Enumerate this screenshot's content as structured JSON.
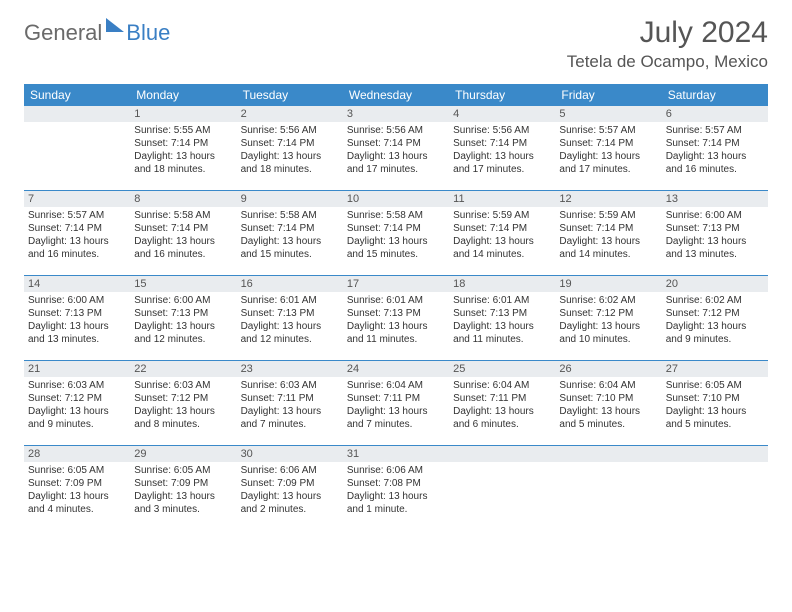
{
  "logo": {
    "general": "General",
    "blue": "Blue"
  },
  "title": {
    "month": "July 2024",
    "location": "Tetela de Ocampo, Mexico"
  },
  "style": {
    "header_bg": "#3a89c9",
    "header_text": "#ffffff",
    "daybar_bg": "#e9ecef",
    "rule_color": "#3a89c9",
    "body_text": "#333333",
    "title_fontsize": 30,
    "loc_fontsize": 17,
    "dow_fontsize": 12,
    "info_fontsize": 10
  },
  "dow": [
    "Sunday",
    "Monday",
    "Tuesday",
    "Wednesday",
    "Thursday",
    "Friday",
    "Saturday"
  ],
  "weeks": [
    [
      {},
      {
        "n": "1",
        "sr": "Sunrise: 5:55 AM",
        "ss": "Sunset: 7:14 PM",
        "d1": "Daylight: 13 hours",
        "d2": "and 18 minutes."
      },
      {
        "n": "2",
        "sr": "Sunrise: 5:56 AM",
        "ss": "Sunset: 7:14 PM",
        "d1": "Daylight: 13 hours",
        "d2": "and 18 minutes."
      },
      {
        "n": "3",
        "sr": "Sunrise: 5:56 AM",
        "ss": "Sunset: 7:14 PM",
        "d1": "Daylight: 13 hours",
        "d2": "and 17 minutes."
      },
      {
        "n": "4",
        "sr": "Sunrise: 5:56 AM",
        "ss": "Sunset: 7:14 PM",
        "d1": "Daylight: 13 hours",
        "d2": "and 17 minutes."
      },
      {
        "n": "5",
        "sr": "Sunrise: 5:57 AM",
        "ss": "Sunset: 7:14 PM",
        "d1": "Daylight: 13 hours",
        "d2": "and 17 minutes."
      },
      {
        "n": "6",
        "sr": "Sunrise: 5:57 AM",
        "ss": "Sunset: 7:14 PM",
        "d1": "Daylight: 13 hours",
        "d2": "and 16 minutes."
      }
    ],
    [
      {
        "n": "7",
        "sr": "Sunrise: 5:57 AM",
        "ss": "Sunset: 7:14 PM",
        "d1": "Daylight: 13 hours",
        "d2": "and 16 minutes."
      },
      {
        "n": "8",
        "sr": "Sunrise: 5:58 AM",
        "ss": "Sunset: 7:14 PM",
        "d1": "Daylight: 13 hours",
        "d2": "and 16 minutes."
      },
      {
        "n": "9",
        "sr": "Sunrise: 5:58 AM",
        "ss": "Sunset: 7:14 PM",
        "d1": "Daylight: 13 hours",
        "d2": "and 15 minutes."
      },
      {
        "n": "10",
        "sr": "Sunrise: 5:58 AM",
        "ss": "Sunset: 7:14 PM",
        "d1": "Daylight: 13 hours",
        "d2": "and 15 minutes."
      },
      {
        "n": "11",
        "sr": "Sunrise: 5:59 AM",
        "ss": "Sunset: 7:14 PM",
        "d1": "Daylight: 13 hours",
        "d2": "and 14 minutes."
      },
      {
        "n": "12",
        "sr": "Sunrise: 5:59 AM",
        "ss": "Sunset: 7:14 PM",
        "d1": "Daylight: 13 hours",
        "d2": "and 14 minutes."
      },
      {
        "n": "13",
        "sr": "Sunrise: 6:00 AM",
        "ss": "Sunset: 7:13 PM",
        "d1": "Daylight: 13 hours",
        "d2": "and 13 minutes."
      }
    ],
    [
      {
        "n": "14",
        "sr": "Sunrise: 6:00 AM",
        "ss": "Sunset: 7:13 PM",
        "d1": "Daylight: 13 hours",
        "d2": "and 13 minutes."
      },
      {
        "n": "15",
        "sr": "Sunrise: 6:00 AM",
        "ss": "Sunset: 7:13 PM",
        "d1": "Daylight: 13 hours",
        "d2": "and 12 minutes."
      },
      {
        "n": "16",
        "sr": "Sunrise: 6:01 AM",
        "ss": "Sunset: 7:13 PM",
        "d1": "Daylight: 13 hours",
        "d2": "and 12 minutes."
      },
      {
        "n": "17",
        "sr": "Sunrise: 6:01 AM",
        "ss": "Sunset: 7:13 PM",
        "d1": "Daylight: 13 hours",
        "d2": "and 11 minutes."
      },
      {
        "n": "18",
        "sr": "Sunrise: 6:01 AM",
        "ss": "Sunset: 7:13 PM",
        "d1": "Daylight: 13 hours",
        "d2": "and 11 minutes."
      },
      {
        "n": "19",
        "sr": "Sunrise: 6:02 AM",
        "ss": "Sunset: 7:12 PM",
        "d1": "Daylight: 13 hours",
        "d2": "and 10 minutes."
      },
      {
        "n": "20",
        "sr": "Sunrise: 6:02 AM",
        "ss": "Sunset: 7:12 PM",
        "d1": "Daylight: 13 hours",
        "d2": "and 9 minutes."
      }
    ],
    [
      {
        "n": "21",
        "sr": "Sunrise: 6:03 AM",
        "ss": "Sunset: 7:12 PM",
        "d1": "Daylight: 13 hours",
        "d2": "and 9 minutes."
      },
      {
        "n": "22",
        "sr": "Sunrise: 6:03 AM",
        "ss": "Sunset: 7:12 PM",
        "d1": "Daylight: 13 hours",
        "d2": "and 8 minutes."
      },
      {
        "n": "23",
        "sr": "Sunrise: 6:03 AM",
        "ss": "Sunset: 7:11 PM",
        "d1": "Daylight: 13 hours",
        "d2": "and 7 minutes."
      },
      {
        "n": "24",
        "sr": "Sunrise: 6:04 AM",
        "ss": "Sunset: 7:11 PM",
        "d1": "Daylight: 13 hours",
        "d2": "and 7 minutes."
      },
      {
        "n": "25",
        "sr": "Sunrise: 6:04 AM",
        "ss": "Sunset: 7:11 PM",
        "d1": "Daylight: 13 hours",
        "d2": "and 6 minutes."
      },
      {
        "n": "26",
        "sr": "Sunrise: 6:04 AM",
        "ss": "Sunset: 7:10 PM",
        "d1": "Daylight: 13 hours",
        "d2": "and 5 minutes."
      },
      {
        "n": "27",
        "sr": "Sunrise: 6:05 AM",
        "ss": "Sunset: 7:10 PM",
        "d1": "Daylight: 13 hours",
        "d2": "and 5 minutes."
      }
    ],
    [
      {
        "n": "28",
        "sr": "Sunrise: 6:05 AM",
        "ss": "Sunset: 7:09 PM",
        "d1": "Daylight: 13 hours",
        "d2": "and 4 minutes."
      },
      {
        "n": "29",
        "sr": "Sunrise: 6:05 AM",
        "ss": "Sunset: 7:09 PM",
        "d1": "Daylight: 13 hours",
        "d2": "and 3 minutes."
      },
      {
        "n": "30",
        "sr": "Sunrise: 6:06 AM",
        "ss": "Sunset: 7:09 PM",
        "d1": "Daylight: 13 hours",
        "d2": "and 2 minutes."
      },
      {
        "n": "31",
        "sr": "Sunrise: 6:06 AM",
        "ss": "Sunset: 7:08 PM",
        "d1": "Daylight: 13 hours",
        "d2": "and 1 minute."
      },
      {},
      {},
      {}
    ]
  ]
}
